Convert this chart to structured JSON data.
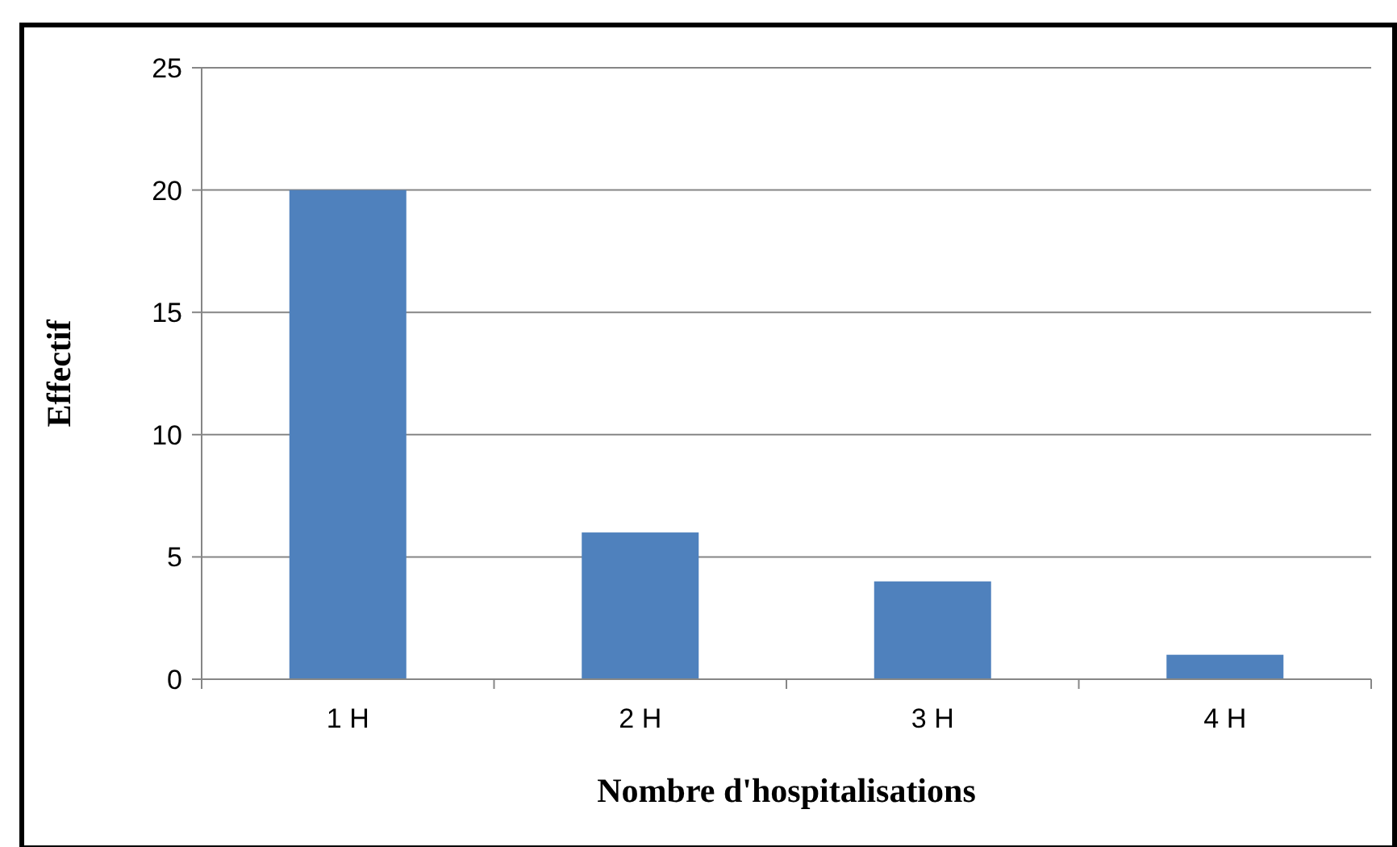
{
  "chart_data": {
    "type": "bar",
    "categories": [
      "1 H",
      "2 H",
      "3 H",
      "4 H"
    ],
    "values": [
      20,
      6,
      4,
      1
    ],
    "color": "#4f81bd",
    "ylim": [
      0,
      25
    ],
    "yticks": [
      0,
      5,
      10,
      15,
      20,
      25
    ],
    "grid": "y",
    "xlabel": "Nombre d'hospitalisations",
    "ylabel": "Effectif"
  }
}
